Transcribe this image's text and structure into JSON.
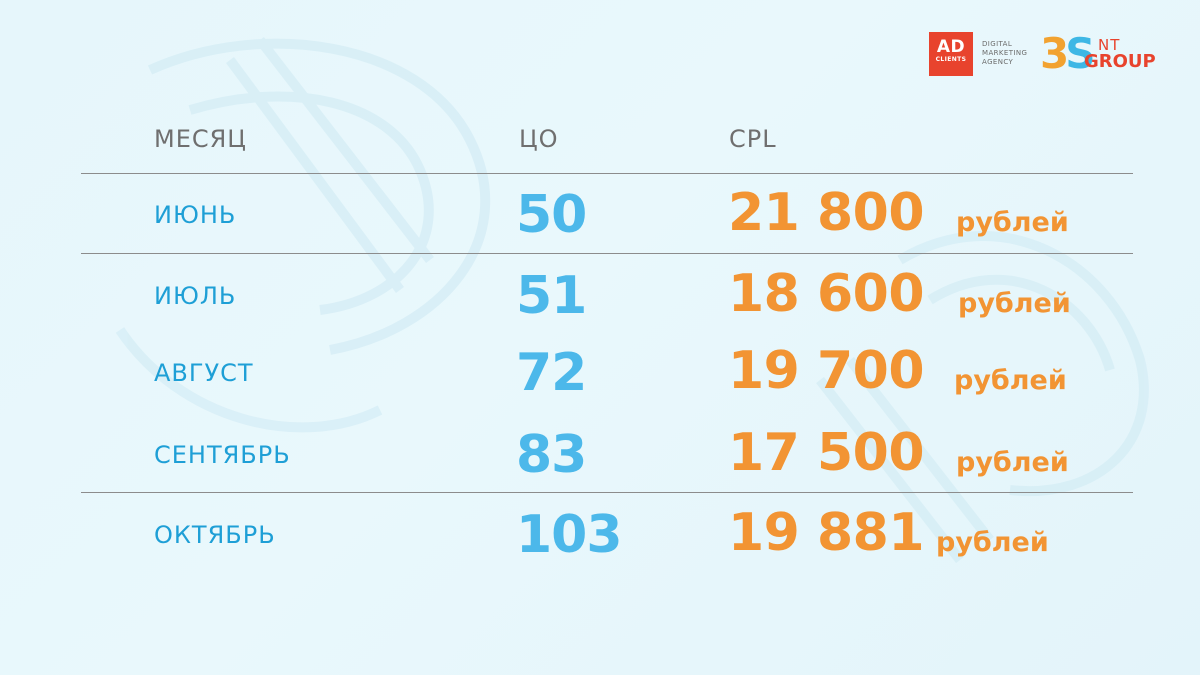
{
  "logos": {
    "ad_clients": {
      "big": "AD",
      "small": "CLIENTS",
      "color": "#e8432d"
    },
    "agency_lines": [
      "DIGITAL",
      "MARKETING",
      "AGENCY"
    ],
    "three_s": {
      "mark_3": "3",
      "mark_s": "S",
      "nt": "NT",
      "group": "GROUP"
    }
  },
  "table": {
    "headers": {
      "month": "МЕСЯЦ",
      "co": "ЦО",
      "cpl": "CPL"
    },
    "rows": [
      {
        "month": "ИЮНЬ",
        "co": "50",
        "cpl": "21 800",
        "unit": "рублей"
      },
      {
        "month": "ИЮЛЬ",
        "co": "51",
        "cpl": "18 600",
        "unit": "рублей"
      },
      {
        "month": "АВГУСТ",
        "co": "72",
        "cpl": "19 700",
        "unit": "рублей"
      },
      {
        "month": "СЕНТЯБРЬ",
        "co": "83",
        "cpl": "17 500",
        "unit": "рублей"
      },
      {
        "month": "ОКТЯБРЬ",
        "co": "103",
        "cpl": "19 881",
        "unit": "рублей"
      }
    ]
  },
  "colors": {
    "month_text": "#1e9fd6",
    "co_value": "#4cb8ea",
    "cpl_value": "#f29433",
    "header_text": "#6f6f6f"
  }
}
